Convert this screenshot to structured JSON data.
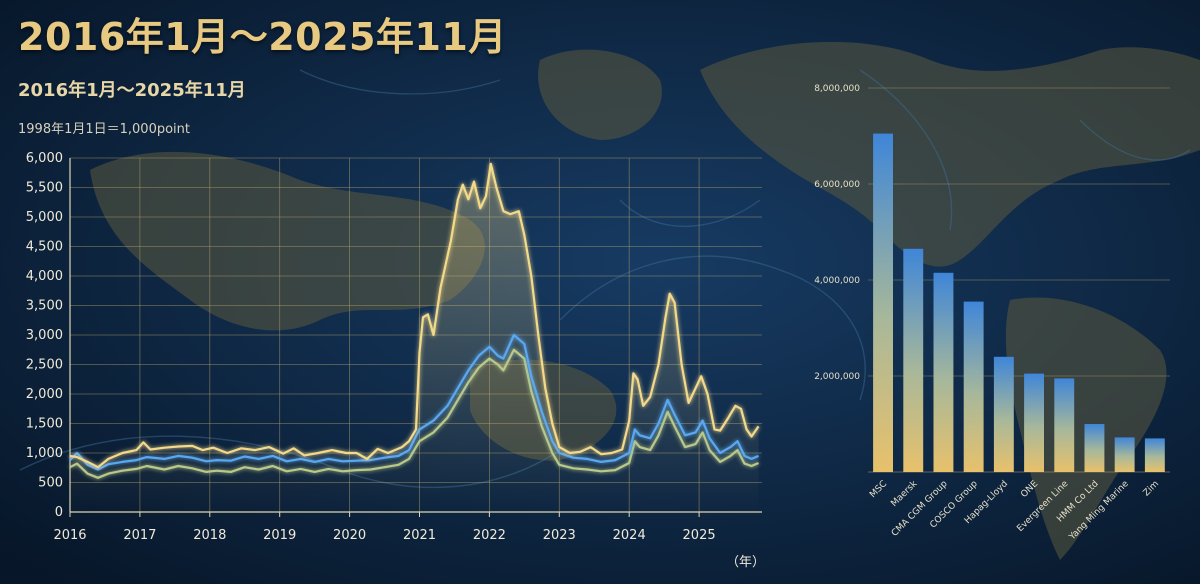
{
  "header": {
    "title": "2016年1月～2025年11月",
    "subtitle": "2016年1月～2025年11月",
    "index_note": "1998年1月1日＝1,000point",
    "x_unit": "（年）"
  },
  "colors": {
    "background": "#0b1f3a",
    "series_gold": "#f3d98a",
    "series_blue": "#5aa8f0",
    "series_green": "#b9c98a",
    "grid": "#b6a36a",
    "bar_top": "#3f86d8",
    "bar_bottom": "#e8c16b"
  },
  "chart_data": [
    {
      "type": "line",
      "title": "2016年1月～2025年11月",
      "ylabel": "1998年1月1日＝1,000point",
      "xlabel": "（年）",
      "xlim": [
        2016.0,
        2025.9
      ],
      "ylim": [
        0,
        6000
      ],
      "x_ticks": [
        "2016",
        "2017",
        "2018",
        "2019",
        "2020",
        "2021",
        "2022",
        "2023",
        "2024",
        "2025"
      ],
      "y_ticks": [
        "0",
        "500",
        "1,000",
        "1,500",
        "2,000",
        "2,500",
        "3,000",
        "3,500",
        "4,000",
        "4,500",
        "5,000",
        "5,500",
        "6,000"
      ],
      "grid": true,
      "series": [
        {
          "color": "#f3d98a",
          "points": [
            [
              2016.0,
              950
            ],
            [
              2016.1,
              930
            ],
            [
              2016.25,
              850
            ],
            [
              2016.4,
              760
            ],
            [
              2016.55,
              900
            ],
            [
              2016.75,
              1000
            ],
            [
              2016.95,
              1050
            ],
            [
              2017.05,
              1180
            ],
            [
              2017.15,
              1060
            ],
            [
              2017.35,
              1090
            ],
            [
              2017.55,
              1110
            ],
            [
              2017.75,
              1120
            ],
            [
              2017.9,
              1050
            ],
            [
              2018.05,
              1090
            ],
            [
              2018.25,
              1000
            ],
            [
              2018.45,
              1080
            ],
            [
              2018.65,
              1050
            ],
            [
              2018.85,
              1100
            ],
            [
              2019.05,
              990
            ],
            [
              2019.2,
              1080
            ],
            [
              2019.35,
              960
            ],
            [
              2019.55,
              1000
            ],
            [
              2019.75,
              1050
            ],
            [
              2019.95,
              1000
            ],
            [
              2020.1,
              1000
            ],
            [
              2020.25,
              900
            ],
            [
              2020.4,
              1070
            ],
            [
              2020.55,
              1000
            ],
            [
              2020.75,
              1100
            ],
            [
              2020.85,
              1200
            ],
            [
              2020.95,
              1400
            ],
            [
              2021.0,
              2700
            ],
            [
              2021.05,
              3300
            ],
            [
              2021.12,
              3350
            ],
            [
              2021.2,
              3000
            ],
            [
              2021.3,
              3800
            ],
            [
              2021.45,
              4600
            ],
            [
              2021.55,
              5300
            ],
            [
              2021.62,
              5550
            ],
            [
              2021.7,
              5300
            ],
            [
              2021.78,
              5600
            ],
            [
              2021.87,
              5150
            ],
            [
              2021.95,
              5350
            ],
            [
              2022.02,
              5900
            ],
            [
              2022.1,
              5500
            ],
            [
              2022.2,
              5100
            ],
            [
              2022.3,
              5050
            ],
            [
              2022.42,
              5100
            ],
            [
              2022.5,
              4700
            ],
            [
              2022.6,
              4000
            ],
            [
              2022.7,
              3000
            ],
            [
              2022.8,
              2100
            ],
            [
              2022.9,
              1500
            ],
            [
              2023.0,
              1100
            ],
            [
              2023.15,
              1000
            ],
            [
              2023.3,
              1020
            ],
            [
              2023.45,
              1100
            ],
            [
              2023.6,
              980
            ],
            [
              2023.75,
              1000
            ],
            [
              2023.9,
              1060
            ],
            [
              2024.0,
              1550
            ],
            [
              2024.06,
              2350
            ],
            [
              2024.12,
              2250
            ],
            [
              2024.2,
              1800
            ],
            [
              2024.3,
              1950
            ],
            [
              2024.42,
              2500
            ],
            [
              2024.52,
              3300
            ],
            [
              2024.58,
              3700
            ],
            [
              2024.65,
              3550
            ],
            [
              2024.75,
              2500
            ],
            [
              2024.85,
              1850
            ],
            [
              2024.95,
              2100
            ],
            [
              2025.03,
              2300
            ],
            [
              2025.12,
              2000
            ],
            [
              2025.22,
              1400
            ],
            [
              2025.3,
              1380
            ],
            [
              2025.42,
              1600
            ],
            [
              2025.52,
              1800
            ],
            [
              2025.6,
              1750
            ],
            [
              2025.68,
              1400
            ],
            [
              2025.75,
              1280
            ],
            [
              2025.85,
              1450
            ]
          ]
        },
        {
          "color": "#5aa8f0",
          "points": [
            [
              2016.0,
              880
            ],
            [
              2016.1,
              1000
            ],
            [
              2016.25,
              800
            ],
            [
              2016.4,
              720
            ],
            [
              2016.55,
              810
            ],
            [
              2016.75,
              850
            ],
            [
              2016.95,
              880
            ],
            [
              2017.1,
              930
            ],
            [
              2017.35,
              900
            ],
            [
              2017.55,
              950
            ],
            [
              2017.75,
              920
            ],
            [
              2017.95,
              860
            ],
            [
              2018.1,
              880
            ],
            [
              2018.3,
              870
            ],
            [
              2018.5,
              940
            ],
            [
              2018.7,
              900
            ],
            [
              2018.9,
              950
            ],
            [
              2019.1,
              860
            ],
            [
              2019.3,
              900
            ],
            [
              2019.5,
              850
            ],
            [
              2019.7,
              900
            ],
            [
              2019.9,
              860
            ],
            [
              2020.1,
              870
            ],
            [
              2020.3,
              880
            ],
            [
              2020.5,
              920
            ],
            [
              2020.7,
              950
            ],
            [
              2020.85,
              1050
            ],
            [
              2021.0,
              1400
            ],
            [
              2021.2,
              1550
            ],
            [
              2021.4,
              1800
            ],
            [
              2021.55,
              2100
            ],
            [
              2021.7,
              2400
            ],
            [
              2021.85,
              2650
            ],
            [
              2022.0,
              2800
            ],
            [
              2022.12,
              2650
            ],
            [
              2022.2,
              2600
            ],
            [
              2022.35,
              3000
            ],
            [
              2022.5,
              2850
            ],
            [
              2022.6,
              2300
            ],
            [
              2022.75,
              1700
            ],
            [
              2022.9,
              1200
            ],
            [
              2023.0,
              1000
            ],
            [
              2023.2,
              920
            ],
            [
              2023.4,
              900
            ],
            [
              2023.6,
              850
            ],
            [
              2023.8,
              880
            ],
            [
              2024.0,
              1000
            ],
            [
              2024.08,
              1400
            ],
            [
              2024.15,
              1300
            ],
            [
              2024.3,
              1250
            ],
            [
              2024.42,
              1500
            ],
            [
              2024.55,
              1900
            ],
            [
              2024.65,
              1650
            ],
            [
              2024.8,
              1300
            ],
            [
              2024.95,
              1350
            ],
            [
              2025.05,
              1550
            ],
            [
              2025.15,
              1250
            ],
            [
              2025.3,
              1000
            ],
            [
              2025.45,
              1100
            ],
            [
              2025.55,
              1200
            ],
            [
              2025.65,
              950
            ],
            [
              2025.75,
              900
            ],
            [
              2025.85,
              950
            ]
          ]
        },
        {
          "color": "#b9c98a",
          "points": [
            [
              2016.0,
              760
            ],
            [
              2016.1,
              820
            ],
            [
              2016.25,
              650
            ],
            [
              2016.4,
              580
            ],
            [
              2016.55,
              650
            ],
            [
              2016.75,
              700
            ],
            [
              2016.95,
              730
            ],
            [
              2017.1,
              780
            ],
            [
              2017.35,
              720
            ],
            [
              2017.55,
              780
            ],
            [
              2017.75,
              740
            ],
            [
              2017.95,
              680
            ],
            [
              2018.1,
              700
            ],
            [
              2018.3,
              680
            ],
            [
              2018.5,
              760
            ],
            [
              2018.7,
              720
            ],
            [
              2018.9,
              780
            ],
            [
              2019.1,
              690
            ],
            [
              2019.3,
              730
            ],
            [
              2019.5,
              680
            ],
            [
              2019.7,
              730
            ],
            [
              2019.9,
              690
            ],
            [
              2020.1,
              710
            ],
            [
              2020.3,
              720
            ],
            [
              2020.5,
              760
            ],
            [
              2020.7,
              800
            ],
            [
              2020.85,
              900
            ],
            [
              2021.0,
              1200
            ],
            [
              2021.2,
              1350
            ],
            [
              2021.4,
              1600
            ],
            [
              2021.55,
              1900
            ],
            [
              2021.7,
              2200
            ],
            [
              2021.85,
              2450
            ],
            [
              2022.0,
              2600
            ],
            [
              2022.12,
              2500
            ],
            [
              2022.2,
              2400
            ],
            [
              2022.35,
              2750
            ],
            [
              2022.5,
              2600
            ],
            [
              2022.6,
              2050
            ],
            [
              2022.75,
              1450
            ],
            [
              2022.9,
              1000
            ],
            [
              2023.0,
              800
            ],
            [
              2023.2,
              740
            ],
            [
              2023.4,
              720
            ],
            [
              2023.6,
              690
            ],
            [
              2023.8,
              710
            ],
            [
              2024.0,
              830
            ],
            [
              2024.08,
              1200
            ],
            [
              2024.15,
              1100
            ],
            [
              2024.3,
              1050
            ],
            [
              2024.42,
              1300
            ],
            [
              2024.55,
              1700
            ],
            [
              2024.65,
              1450
            ],
            [
              2024.8,
              1100
            ],
            [
              2024.95,
              1150
            ],
            [
              2025.05,
              1350
            ],
            [
              2025.15,
              1050
            ],
            [
              2025.3,
              850
            ],
            [
              2025.45,
              950
            ],
            [
              2025.55,
              1050
            ],
            [
              2025.65,
              820
            ],
            [
              2025.75,
              780
            ],
            [
              2025.85,
              830
            ]
          ]
        }
      ]
    },
    {
      "type": "bar",
      "categories": [
        "MSC",
        "Maersk",
        "CMA CGM Group",
        "COSCO Group",
        "Hapag-Lloyd",
        "ONE",
        "Evergreen Line",
        "HMM Co Ltd",
        "Yang Ming Marine",
        "Zim"
      ],
      "values": [
        7050000,
        4650000,
        4150000,
        3550000,
        2400000,
        2050000,
        1950000,
        1000000,
        720000,
        700000
      ],
      "y_ticks": [
        "8,000,000",
        "6,000,000",
        "4,000,000",
        "2,000,000"
      ],
      "ylim": [
        0,
        8000000
      ],
      "grid": true
    }
  ]
}
